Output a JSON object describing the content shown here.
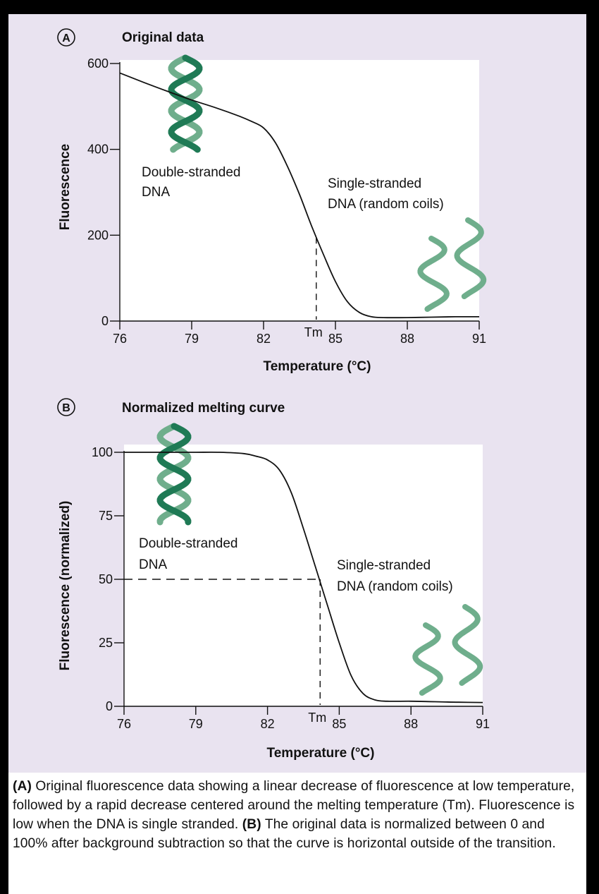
{
  "chart_data": [
    {
      "panel_label": "A",
      "type": "line",
      "title": "Original data",
      "xlabel": "Temperature (°C)",
      "ylabel": "Fluorescence",
      "xlim": [
        76,
        91
      ],
      "ylim": [
        0,
        600
      ],
      "xticks": [
        76,
        79,
        82,
        85,
        88,
        91
      ],
      "yticks": [
        0,
        200,
        400,
        600
      ],
      "tm_label": "Tm",
      "tm_x": 84.2,
      "grid": false,
      "annotations": {
        "double": [
          "Double-stranded",
          "DNA"
        ],
        "single": [
          "Single-stranded",
          "DNA (random coils)"
        ]
      },
      "series": [
        {
          "x": [
            76,
            77,
            78,
            79,
            80,
            81,
            81.5,
            82,
            82.5,
            83,
            83.5,
            84,
            84.5,
            85,
            85.5,
            86,
            86.5,
            87,
            88,
            89,
            90,
            91
          ],
          "y": [
            578,
            556,
            535,
            515,
            497,
            477,
            465,
            450,
            415,
            360,
            295,
            222,
            155,
            92,
            45,
            20,
            10,
            8,
            8,
            9,
            10,
            10
          ]
        }
      ]
    },
    {
      "panel_label": "B",
      "type": "line",
      "title": "Normalized melting curve",
      "xlabel": "Temperature (°C)",
      "ylabel": "Fluorescence (normalized)",
      "xlim": [
        76,
        91
      ],
      "ylim": [
        0,
        100
      ],
      "xticks": [
        76,
        79,
        82,
        85,
        88,
        91
      ],
      "yticks": [
        0,
        25,
        50,
        75,
        100
      ],
      "tm_label": "Tm",
      "tm_x": 84.2,
      "half_level": 50,
      "grid": false,
      "annotations": {
        "double": [
          "Double-stranded",
          "DNA"
        ],
        "single": [
          "Single-stranded",
          "DNA (random coils)"
        ]
      },
      "series": [
        {
          "x": [
            76,
            77,
            78,
            79,
            80,
            81,
            81.5,
            82,
            82.5,
            83,
            83.5,
            84,
            84.5,
            85,
            85.5,
            86,
            86.5,
            87,
            88,
            89,
            90,
            91
          ],
          "y": [
            100,
            100,
            100,
            100,
            100,
            99.5,
            98.5,
            97,
            93,
            84,
            70,
            55,
            40,
            25,
            12,
            5,
            2.5,
            2,
            2,
            1.8,
            1.6,
            1.5
          ]
        }
      ]
    }
  ],
  "caption": {
    "a_label": "(A)",
    "a_text": " Original fluorescence data showing a linear decrease of fluorescence at low temperature, followed by a rapid decrease centered around the melting temperature (Tm). Fluorescence is low when the DNA is single stranded. ",
    "b_label": "(B)",
    "b_text": " The original data is normalized between 0 and 100% after background subtraction so that the curve is horizontal outside of the transition."
  },
  "colors": {
    "helix_dark": "#1f7a55",
    "helix_light": "#6fae8c",
    "panel_bg": "#e9e3f0",
    "plot_bg": "#ffffff"
  }
}
